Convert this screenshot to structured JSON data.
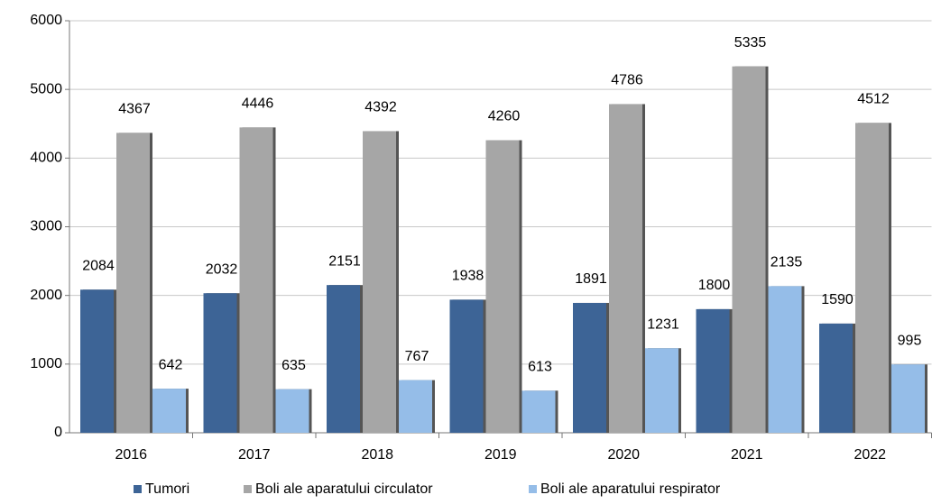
{
  "chart_data": {
    "type": "bar",
    "categories": [
      "2016",
      "2017",
      "2018",
      "2019",
      "2020",
      "2021",
      "2022"
    ],
    "series": [
      {
        "name": "Tumori",
        "color": "#3d6496",
        "values": [
          2084,
          2032,
          2151,
          1938,
          1891,
          1800,
          1590
        ]
      },
      {
        "name": "Boli ale aparatului circulator",
        "color": "#a6a6a6",
        "values": [
          4367,
          4446,
          4392,
          4260,
          4786,
          5335,
          4512
        ]
      },
      {
        "name": "Boli ale aparatului respirator",
        "color": "#95bde8",
        "values": [
          642,
          635,
          767,
          613,
          1231,
          2135,
          995
        ]
      }
    ],
    "ylim": [
      0,
      6000
    ],
    "yticks": [
      0,
      1000,
      2000,
      3000,
      4000,
      5000,
      6000
    ],
    "grid": true,
    "legend": "bottom"
  }
}
